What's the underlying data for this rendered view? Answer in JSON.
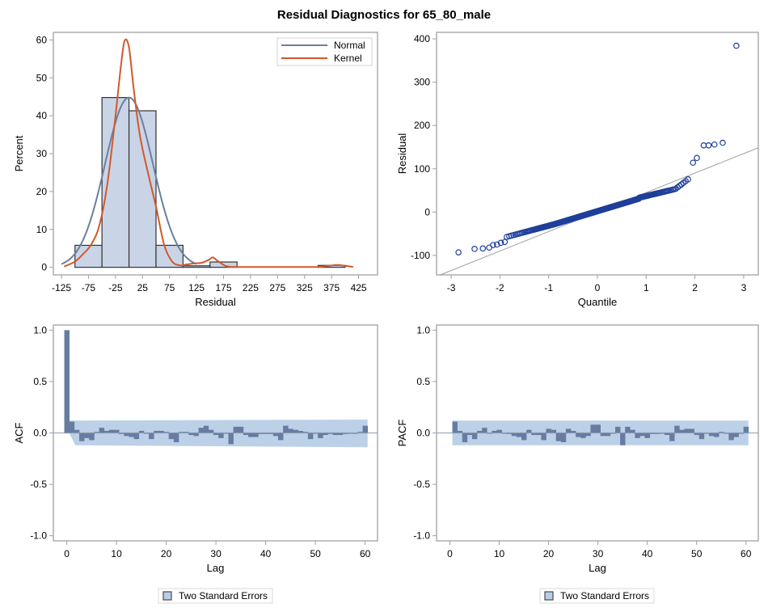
{
  "title": "Residual Diagnostics for 65_80_male",
  "colors": {
    "hist_fill": "#c9d5e6",
    "hist_stroke": "#333333",
    "normal_line": "#6a7fa0",
    "kernel_line": "#d3582a",
    "qq_marker": "#1f3f9a",
    "qq_ref_line": "#a0a0a0",
    "acf_bar": "#667ca0",
    "band_fill": "#b8cde6",
    "zero_line": "#a9b6c8"
  },
  "chart_data": [
    {
      "id": "histogram",
      "type": "bar",
      "title": "",
      "xlabel": "Residual",
      "ylabel": "Percent",
      "xlim": [
        -140,
        460
      ],
      "ylim": [
        -2,
        62
      ],
      "xticks": [
        -125,
        -75,
        -25,
        25,
        75,
        125,
        175,
        225,
        275,
        325,
        375,
        425
      ],
      "yticks": [
        0,
        10,
        20,
        30,
        40,
        50,
        60
      ],
      "bins": [
        {
          "from": -100,
          "to": -50,
          "percent": 5.8
        },
        {
          "from": -50,
          "to": 0,
          "percent": 44.8
        },
        {
          "from": 0,
          "to": 50,
          "percent": 41.3
        },
        {
          "from": 50,
          "to": 100,
          "percent": 5.8
        },
        {
          "from": 100,
          "to": 150,
          "percent": 0.4
        },
        {
          "from": 150,
          "to": 200,
          "percent": 1.4
        },
        {
          "from": 350,
          "to": 400,
          "percent": 0.5
        }
      ],
      "series": [
        {
          "name": "Normal",
          "kind": "normal-density",
          "mean": 0,
          "sd": 44.5,
          "peak_percent": 44.8,
          "x_range": [
            -125,
            125
          ]
        },
        {
          "name": "Kernel",
          "kind": "kernel-density",
          "x": [
            -120,
            -100,
            -85,
            -70,
            -55,
            -40,
            -25,
            -15,
            -8,
            0,
            8,
            20,
            35,
            50,
            65,
            80,
            95,
            105,
            120,
            135,
            148,
            155,
            165,
            180,
            200,
            250,
            300,
            350,
            370,
            385,
            400,
            415
          ],
          "y": [
            0.2,
            1.5,
            3.5,
            6,
            11,
            22,
            40,
            53,
            59.8,
            58,
            48,
            35,
            25,
            16,
            6,
            1.5,
            0.5,
            0.7,
            1,
            1.2,
            2,
            2.6,
            1.6,
            0.3,
            0.1,
            0.1,
            0.1,
            0.1,
            0.4,
            0.6,
            0.4,
            0.1
          ]
        }
      ],
      "legend": {
        "position": "top-right",
        "entries": [
          "Normal",
          "Kernel"
        ]
      }
    },
    {
      "id": "qq-plot",
      "type": "scatter",
      "title": "",
      "xlabel": "Quantile",
      "ylabel": "Residual",
      "xlim": [
        -3.3,
        3.3
      ],
      "ylim": [
        -145,
        415
      ],
      "xticks": [
        -3,
        -2,
        -1,
        0,
        1,
        2,
        3
      ],
      "yticks": [
        -100,
        0,
        100,
        200,
        300,
        400
      ],
      "reference_line": {
        "intercept": 0,
        "slope": 45
      },
      "points_summary": "approximately 270 residuals vs normal quantiles; bulk follows line with slope ~45 between -1.5 and 1.5",
      "outliers": [
        {
          "x": -2.85,
          "y": -93
        },
        {
          "x": -2.52,
          "y": -85
        },
        {
          "x": -2.35,
          "y": -84
        },
        {
          "x": -2.22,
          "y": -82
        },
        {
          "x": -2.14,
          "y": -76
        },
        {
          "x": -2.06,
          "y": -75
        },
        {
          "x": -1.98,
          "y": -71
        },
        {
          "x": -1.9,
          "y": -69
        },
        {
          "x": 1.96,
          "y": 114
        },
        {
          "x": 2.04,
          "y": 125
        },
        {
          "x": 2.18,
          "y": 154
        },
        {
          "x": 2.28,
          "y": 154
        },
        {
          "x": 2.4,
          "y": 156
        },
        {
          "x": 2.57,
          "y": 160
        },
        {
          "x": 2.85,
          "y": 384
        }
      ]
    },
    {
      "id": "acf",
      "type": "bar",
      "title": "",
      "xlabel": "Lag",
      "ylabel": "ACF",
      "xlim": [
        -2.7,
        62.5
      ],
      "ylim": [
        -1.05,
        1.05
      ],
      "xticks": [
        0,
        10,
        20,
        30,
        40,
        50,
        60
      ],
      "yticks": [
        -1.0,
        -0.5,
        0.0,
        0.5,
        1.0
      ],
      "lags": [
        0,
        1,
        2,
        3,
        4,
        5,
        6,
        7,
        8,
        9,
        10,
        11,
        12,
        13,
        14,
        15,
        16,
        17,
        18,
        19,
        20,
        21,
        22,
        23,
        24,
        25,
        26,
        27,
        28,
        29,
        30,
        31,
        32,
        33,
        34,
        35,
        36,
        37,
        38,
        39,
        40,
        41,
        42,
        43,
        44,
        45,
        46,
        47,
        48,
        49,
        50,
        51,
        52,
        53,
        54,
        55,
        56,
        57,
        58,
        59,
        60
      ],
      "values": [
        1.0,
        0.11,
        0.03,
        -0.08,
        -0.05,
        -0.07,
        0.01,
        0.05,
        0.02,
        0.03,
        0.03,
        -0.01,
        -0.03,
        -0.04,
        -0.06,
        0.02,
        0.0,
        -0.06,
        0.02,
        0.02,
        0.01,
        -0.06,
        -0.09,
        0.01,
        0.01,
        -0.02,
        -0.03,
        0.05,
        0.07,
        0.03,
        -0.02,
        -0.05,
        0.0,
        -0.11,
        0.06,
        0.06,
        -0.02,
        -0.04,
        -0.04,
        -0.01,
        -0.01,
        -0.01,
        -0.03,
        -0.07,
        0.07,
        0.04,
        0.03,
        0.02,
        0.01,
        -0.06,
        0.0,
        -0.05,
        -0.02,
        -0.01,
        -0.02,
        -0.02,
        -0.01,
        0.0,
        0.0,
        0.01,
        0.07
      ],
      "band": {
        "label": "Two Standard Errors",
        "upper_start": 0.12,
        "upper_end": 0.13,
        "lower_start": -0.12,
        "lower_end": -0.14,
        "lag_range": [
          1,
          60
        ]
      },
      "legend": {
        "position": "bottom",
        "entries": [
          "Two Standard Errors"
        ]
      }
    },
    {
      "id": "pacf",
      "type": "bar",
      "title": "",
      "xlabel": "Lag",
      "ylabel": "PACF",
      "xlim": [
        -2.7,
        62.5
      ],
      "ylim": [
        -1.05,
        1.05
      ],
      "xticks": [
        0,
        10,
        20,
        30,
        40,
        50,
        60
      ],
      "yticks": [
        -1.0,
        -0.5,
        0.0,
        0.5,
        1.0
      ],
      "lags": [
        1,
        2,
        3,
        4,
        5,
        6,
        7,
        8,
        9,
        10,
        11,
        12,
        13,
        14,
        15,
        16,
        17,
        18,
        19,
        20,
        21,
        22,
        23,
        24,
        25,
        26,
        27,
        28,
        29,
        30,
        31,
        32,
        33,
        34,
        35,
        36,
        37,
        38,
        39,
        40,
        41,
        42,
        43,
        44,
        45,
        46,
        47,
        48,
        49,
        50,
        51,
        52,
        53,
        54,
        55,
        56,
        57,
        58,
        59,
        60
      ],
      "values": [
        0.11,
        0.02,
        -0.09,
        -0.02,
        -0.06,
        0.02,
        0.05,
        0.0,
        0.02,
        0.03,
        0.0,
        -0.01,
        -0.03,
        -0.04,
        -0.07,
        0.03,
        -0.02,
        -0.02,
        -0.07,
        0.04,
        0.03,
        -0.08,
        -0.09,
        0.04,
        0.02,
        -0.04,
        -0.05,
        -0.03,
        0.08,
        0.08,
        -0.03,
        -0.03,
        0.0,
        0.06,
        -0.12,
        0.06,
        0.03,
        -0.05,
        -0.03,
        -0.05,
        -0.01,
        -0.01,
        0.0,
        -0.02,
        -0.08,
        0.07,
        0.03,
        0.04,
        0.04,
        -0.02,
        -0.06,
        0.0,
        -0.03,
        -0.04,
        0.01,
        0.0,
        -0.07,
        -0.04,
        0.0,
        0.06
      ],
      "band": {
        "label": "Two Standard Errors",
        "upper_start": 0.12,
        "upper_end": 0.12,
        "lower_start": -0.12,
        "lower_end": -0.12,
        "lag_range": [
          1,
          60
        ]
      },
      "legend": {
        "position": "bottom",
        "entries": [
          "Two Standard Errors"
        ]
      }
    }
  ]
}
